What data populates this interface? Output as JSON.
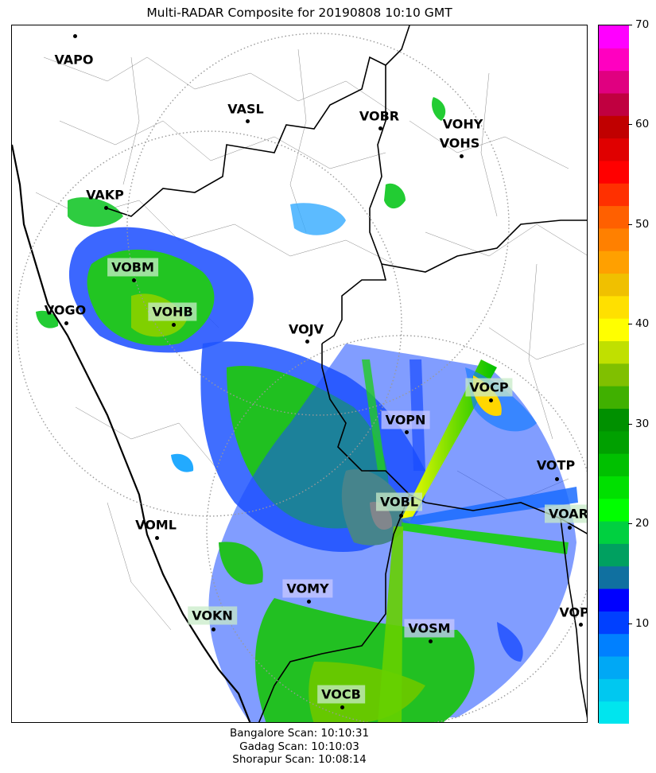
{
  "title": "Multi-RADAR Composite for 20190808 10:10 GMT",
  "stations": [
    {
      "name": "VAPO",
      "highlight": "none"
    },
    {
      "name": "VASL",
      "highlight": "none"
    },
    {
      "name": "VOBR",
      "highlight": "none"
    },
    {
      "name": "VOHY",
      "highlight": "none"
    },
    {
      "name": "VOHS",
      "highlight": "none"
    },
    {
      "name": "VAKP",
      "highlight": "none"
    },
    {
      "name": "VOBM",
      "highlight": "green"
    },
    {
      "name": "VOGO",
      "highlight": "none"
    },
    {
      "name": "VOHB",
      "highlight": "green"
    },
    {
      "name": "VOJV",
      "highlight": "none"
    },
    {
      "name": "VOCP",
      "highlight": "green"
    },
    {
      "name": "VOPN",
      "highlight": "blue"
    },
    {
      "name": "VOTP",
      "highlight": "none"
    },
    {
      "name": "VOBL",
      "highlight": "green"
    },
    {
      "name": "VOAR",
      "highlight": "green"
    },
    {
      "name": "VOML",
      "highlight": "none"
    },
    {
      "name": "VOMY",
      "highlight": "blue"
    },
    {
      "name": "VOKN",
      "highlight": "green"
    },
    {
      "name": "VOPC",
      "highlight": "none"
    },
    {
      "name": "VOSM",
      "highlight": "blue"
    },
    {
      "name": "VOCB",
      "highlight": "green"
    }
  ],
  "colorbar": {
    "min": 0,
    "max": 70,
    "ticks": [
      "10",
      "20",
      "30",
      "40",
      "50",
      "60",
      "70"
    ],
    "colors": [
      "#00e5ee",
      "#00c8f0",
      "#00a8f5",
      "#0080ff",
      "#0040ff",
      "#0000ff",
      "#1070a0",
      "#00a060",
      "#00d040",
      "#00ff00",
      "#00e000",
      "#00c000",
      "#00a000",
      "#009000",
      "#40b000",
      "#80c000",
      "#c0e000",
      "#ffff00",
      "#ffe000",
      "#f0c000",
      "#ffa000",
      "#ff8000",
      "#ff6000",
      "#ff3000",
      "#ff0000",
      "#e00000",
      "#c00000",
      "#c00040",
      "#e00080",
      "#ff00c0",
      "#ff00ff"
    ]
  },
  "footer": {
    "line1": "Bangalore Scan: 10:10:31",
    "line2": "Gadag Scan: 10:10:03",
    "line3": "Shorapur Scan: 10:08:14"
  }
}
